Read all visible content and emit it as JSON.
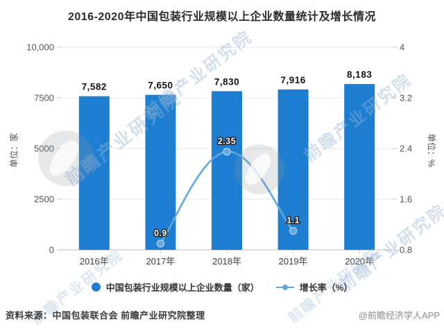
{
  "title": "2016-2020年中国包装行业规模以上企业数量统计及增长情况",
  "chart_data": {
    "type": "bar",
    "subtype": "bar+line combo",
    "categories": [
      "2016年",
      "2017年",
      "2018年",
      "2019年",
      "2020年"
    ],
    "series": [
      {
        "name": "中国包装行业规模以上企业数量（家）",
        "type": "bar",
        "axis": "left",
        "values": [
          7582,
          7650,
          7830,
          7916,
          8183
        ],
        "labels": [
          "7,582",
          "7,650",
          "7,830",
          "7,916",
          "8,183"
        ],
        "color": "#1e7fd2"
      },
      {
        "name": "增长率（%）",
        "type": "line",
        "axis": "right",
        "values": [
          null,
          0.9,
          2.35,
          1.1,
          null
        ],
        "labels": [
          null,
          "0.9",
          "2.35",
          "1.1",
          null
        ],
        "color": "#5fa8e0"
      }
    ],
    "left_axis": {
      "title": "单位：家",
      "ticks": [
        0,
        2500,
        5000,
        7500,
        10000
      ],
      "tick_labels": [
        "0",
        "2500",
        "5000",
        "7500",
        "10,000"
      ],
      "range": [
        0,
        10000
      ]
    },
    "right_axis": {
      "title": "单位：%",
      "ticks": [
        0.8,
        1.6,
        2.4,
        3.2,
        4
      ],
      "tick_labels": [
        "0.8",
        "1.6",
        "2.4",
        "3.2",
        "4"
      ],
      "range": [
        0.8,
        4
      ]
    },
    "grid": true,
    "legend_position": "bottom"
  },
  "footer": {
    "source": "资料来源：中国包装联合会 前瞻产业研究院整理",
    "brand": "@前瞻经济学人APP"
  },
  "watermark": {
    "text": "前瞻产业研究院"
  },
  "colors": {
    "bar": "#1e7fd2",
    "line": "#5fa8e0",
    "title": "#2b2b2b",
    "grid": "#e7e7e7"
  }
}
